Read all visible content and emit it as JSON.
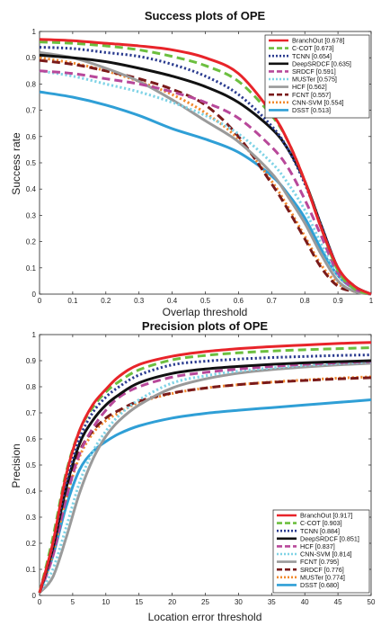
{
  "chart_data": [
    {
      "type": "line",
      "title": "Success plots of OPE",
      "xlabel": "Overlap threshold",
      "ylabel": "Success rate",
      "xlim": [
        0,
        1
      ],
      "ylim": [
        0,
        1
      ],
      "xticks": [
        "0",
        "0.1",
        "0.2",
        "0.3",
        "0.4",
        "0.5",
        "0.6",
        "0.7",
        "0.8",
        "0.9",
        "1"
      ],
      "yticks": [
        "0",
        "0.1",
        "0.2",
        "0.3",
        "0.4",
        "0.5",
        "0.6",
        "0.7",
        "0.8",
        "0.9",
        "1"
      ],
      "grid": false,
      "legend_position": "top-right",
      "x": [
        0,
        0.1,
        0.2,
        0.3,
        0.4,
        0.5,
        0.6,
        0.7,
        0.75,
        0.8,
        0.85,
        0.9,
        0.95,
        1.0
      ],
      "series": [
        {
          "name": "BranchOut [0.678]",
          "color": "#e8242a",
          "dash": "solid",
          "values": [
            0.97,
            0.965,
            0.955,
            0.945,
            0.93,
            0.9,
            0.84,
            0.69,
            0.58,
            0.43,
            0.25,
            0.1,
            0.03,
            0.0
          ]
        },
        {
          "name": "C-COT [0.673]",
          "color": "#6cbf3f",
          "dash": "dash",
          "values": [
            0.96,
            0.955,
            0.945,
            0.93,
            0.905,
            0.87,
            0.81,
            0.68,
            0.58,
            0.43,
            0.25,
            0.09,
            0.02,
            0.0
          ]
        },
        {
          "name": "TCNN [0.654]",
          "color": "#2a3b8f",
          "dash": "dot",
          "values": [
            0.94,
            0.935,
            0.92,
            0.905,
            0.875,
            0.83,
            0.76,
            0.64,
            0.55,
            0.42,
            0.26,
            0.1,
            0.03,
            0.0
          ]
        },
        {
          "name": "DeepSRDCF [0.635]",
          "color": "#111111",
          "dash": "solid",
          "values": [
            0.91,
            0.9,
            0.885,
            0.86,
            0.83,
            0.79,
            0.73,
            0.63,
            0.55,
            0.43,
            0.26,
            0.1,
            0.03,
            0.0
          ]
        },
        {
          "name": "SRDCF [0.591]",
          "color": "#b8489a",
          "dash": "dash",
          "values": [
            0.85,
            0.84,
            0.82,
            0.8,
            0.77,
            0.73,
            0.67,
            0.56,
            0.48,
            0.36,
            0.22,
            0.08,
            0.02,
            0.0
          ]
        },
        {
          "name": "MUSTer [0.575]",
          "color": "#7fd3e6",
          "dash": "dot",
          "values": [
            0.85,
            0.83,
            0.8,
            0.77,
            0.73,
            0.68,
            0.61,
            0.5,
            0.42,
            0.32,
            0.19,
            0.07,
            0.02,
            0.0
          ]
        },
        {
          "name": "HCF [0.562]",
          "color": "#9a9a9a",
          "dash": "solid",
          "values": [
            0.92,
            0.9,
            0.86,
            0.81,
            0.74,
            0.66,
            0.58,
            0.46,
            0.37,
            0.27,
            0.15,
            0.05,
            0.01,
            0.0
          ]
        },
        {
          "name": "FCNT [0.557]",
          "color": "#7a1a1a",
          "dash": "dash",
          "values": [
            0.89,
            0.875,
            0.85,
            0.82,
            0.78,
            0.72,
            0.6,
            0.42,
            0.32,
            0.21,
            0.1,
            0.03,
            0.01,
            0.0
          ]
        },
        {
          "name": "CNN-SVM [0.554]",
          "color": "#f28a2e",
          "dash": "dot",
          "values": [
            0.9,
            0.88,
            0.85,
            0.81,
            0.76,
            0.69,
            0.59,
            0.43,
            0.33,
            0.22,
            0.11,
            0.04,
            0.01,
            0.0
          ]
        },
        {
          "name": "DSST [0.513]",
          "color": "#2f9fd6",
          "dash": "solid",
          "values": [
            0.77,
            0.75,
            0.72,
            0.68,
            0.63,
            0.59,
            0.54,
            0.45,
            0.38,
            0.29,
            0.17,
            0.07,
            0.02,
            0.0
          ]
        }
      ]
    },
    {
      "type": "line",
      "title": "Precision plots of OPE",
      "xlabel": "Location error threshold",
      "ylabel": "Precision",
      "xlim": [
        0,
        50
      ],
      "ylim": [
        0,
        1
      ],
      "xticks": [
        "0",
        "5",
        "10",
        "15",
        "20",
        "25",
        "30",
        "35",
        "40",
        "45",
        "50"
      ],
      "yticks": [
        "0",
        "0.1",
        "0.2",
        "0.3",
        "0.4",
        "0.5",
        "0.6",
        "0.7",
        "0.8",
        "0.9",
        "1"
      ],
      "grid": false,
      "legend_position": "bottom-right",
      "x": [
        0,
        2,
        4,
        6,
        8,
        10,
        12,
        15,
        20,
        25,
        30,
        35,
        40,
        45,
        50
      ],
      "series": [
        {
          "name": "BranchOut [0.917]",
          "color": "#e8242a",
          "dash": "solid",
          "values": [
            0.01,
            0.2,
            0.46,
            0.63,
            0.73,
            0.79,
            0.84,
            0.885,
            0.917,
            0.935,
            0.946,
            0.954,
            0.96,
            0.966,
            0.97
          ]
        },
        {
          "name": "C-COT [0.903]",
          "color": "#6cbf3f",
          "dash": "dash",
          "values": [
            0.01,
            0.22,
            0.47,
            0.63,
            0.72,
            0.78,
            0.82,
            0.865,
            0.903,
            0.92,
            0.93,
            0.937,
            0.942,
            0.946,
            0.95
          ]
        },
        {
          "name": "TCNN [0.884]",
          "color": "#2a3b8f",
          "dash": "dot",
          "values": [
            0.01,
            0.19,
            0.43,
            0.6,
            0.7,
            0.76,
            0.8,
            0.845,
            0.884,
            0.898,
            0.906,
            0.912,
            0.916,
            0.92,
            0.922
          ]
        },
        {
          "name": "DeepSRDCF [0.851]",
          "color": "#111111",
          "dash": "solid",
          "values": [
            0.01,
            0.18,
            0.41,
            0.58,
            0.67,
            0.73,
            0.77,
            0.815,
            0.851,
            0.868,
            0.878,
            0.886,
            0.892,
            0.896,
            0.9
          ]
        },
        {
          "name": "HCF [0.837]",
          "color": "#b8489a",
          "dash": "dash",
          "values": [
            0.01,
            0.15,
            0.37,
            0.54,
            0.64,
            0.71,
            0.76,
            0.8,
            0.837,
            0.855,
            0.868,
            0.878,
            0.886,
            0.892,
            0.897
          ]
        },
        {
          "name": "CNN-SVM [0.814]",
          "color": "#7fd3e6",
          "dash": "dot",
          "values": [
            0.01,
            0.1,
            0.26,
            0.43,
            0.55,
            0.63,
            0.69,
            0.75,
            0.814,
            0.842,
            0.86,
            0.872,
            0.882,
            0.889,
            0.895
          ]
        },
        {
          "name": "FCNT [0.795]",
          "color": "#9a9a9a",
          "dash": "solid",
          "values": [
            0.01,
            0.07,
            0.22,
            0.39,
            0.52,
            0.61,
            0.67,
            0.73,
            0.795,
            0.83,
            0.852,
            0.866,
            0.876,
            0.884,
            0.89
          ]
        },
        {
          "name": "SRDCF [0.776]",
          "color": "#7a1a1a",
          "dash": "dash",
          "values": [
            0.01,
            0.17,
            0.39,
            0.55,
            0.63,
            0.68,
            0.71,
            0.745,
            0.776,
            0.795,
            0.808,
            0.817,
            0.824,
            0.83,
            0.835
          ]
        },
        {
          "name": "MUSTer [0.774]",
          "color": "#f28a2e",
          "dash": "dot",
          "values": [
            0.01,
            0.16,
            0.37,
            0.53,
            0.62,
            0.67,
            0.7,
            0.74,
            0.774,
            0.795,
            0.808,
            0.818,
            0.826,
            0.833,
            0.838
          ]
        },
        {
          "name": "DSST [0.680]",
          "color": "#2f9fd6",
          "dash": "solid",
          "values": [
            0.01,
            0.15,
            0.34,
            0.48,
            0.55,
            0.59,
            0.62,
            0.65,
            0.68,
            0.698,
            0.71,
            0.72,
            0.73,
            0.74,
            0.75
          ]
        }
      ]
    }
  ]
}
